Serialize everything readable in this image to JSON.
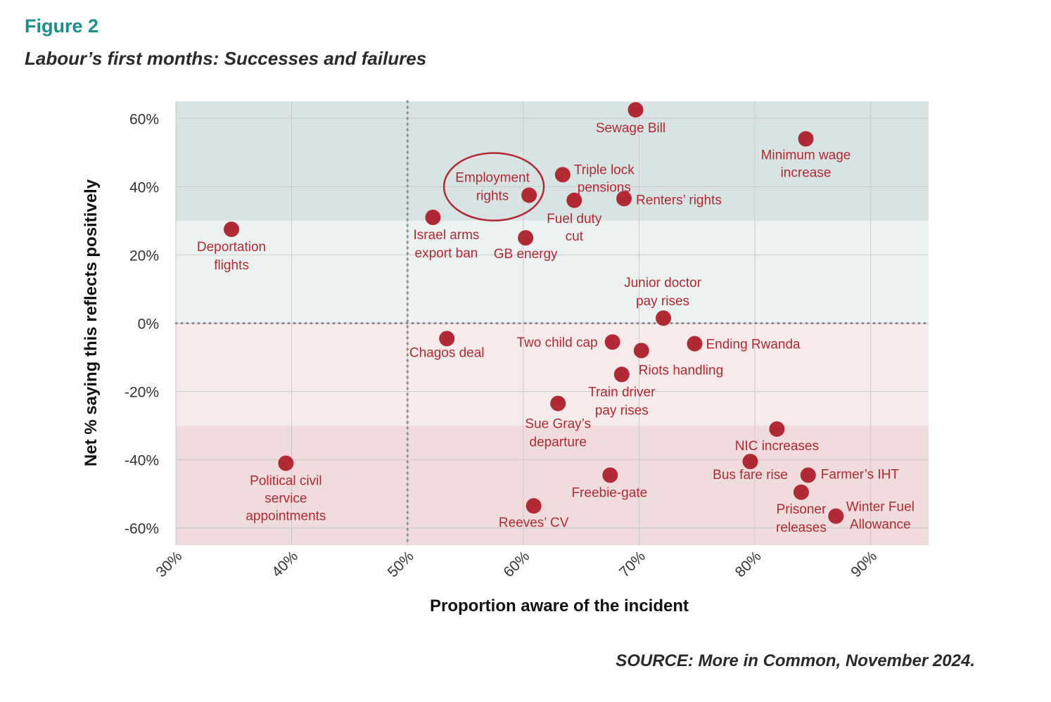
{
  "figure_label": "Figure 2",
  "subtitle": "Labour’s first months: Successes and failures",
  "source": "SOURCE: More in Common, November 2024.",
  "colors": {
    "point": "#b12a33",
    "label": "#b12a33",
    "band_top": "#d8e3e4",
    "band_upper": "#ecf2f2",
    "band_lower": "#f6eaeb",
    "band_bottom": "#f0dcdd",
    "grid": "#c9c9c9",
    "ref_line": "#8a8a8a"
  },
  "chart_data": {
    "type": "scatter",
    "xlabel": "Proportion aware of the incident",
    "ylabel": "Net % saying this reflects positively",
    "xlim": [
      30,
      95
    ],
    "ylim": [
      -65,
      65
    ],
    "x_ticks": [
      30,
      40,
      50,
      60,
      70,
      80,
      90
    ],
    "x_tick_labels": [
      "30%",
      "40%",
      "50%",
      "60%",
      "70%",
      "80%",
      "90%"
    ],
    "y_ticks": [
      60,
      40,
      20,
      0,
      -20,
      -40,
      -60
    ],
    "y_tick_labels": [
      "60%",
      "40%",
      "20%",
      "0%",
      "-20%",
      "-40%",
      "-60%"
    ],
    "grid": true,
    "reference_lines": {
      "x": 50,
      "y": 0
    },
    "bands": [
      {
        "from": 30,
        "to": 65,
        "tone": "strong-positive"
      },
      {
        "from": 0,
        "to": 30,
        "tone": "positive"
      },
      {
        "from": -30,
        "to": 0,
        "tone": "negative"
      },
      {
        "from": -65,
        "to": -30,
        "tone": "strong-negative"
      }
    ],
    "highlighted": "Employment rights",
    "points": [
      {
        "label": "Sewage Bill",
        "x": 69.7,
        "y": 62.5
      },
      {
        "label": "Minimum wage increase",
        "x": 84.4,
        "y": 54.0
      },
      {
        "label": "Triple lock pensions",
        "x": 63.4,
        "y": 43.5
      },
      {
        "label": "Employment rights",
        "x": 60.5,
        "y": 37.5
      },
      {
        "label": "Renters’ rights",
        "x": 68.7,
        "y": 36.5
      },
      {
        "label": "Fuel duty cut",
        "x": 64.4,
        "y": 36.0
      },
      {
        "label": "Israel arms export ban",
        "x": 52.2,
        "y": 31.0
      },
      {
        "label": "Deportation flights",
        "x": 34.8,
        "y": 27.5
      },
      {
        "label": "GB energy",
        "x": 60.2,
        "y": 25.0
      },
      {
        "label": "Junior doctor pay rises",
        "x": 72.1,
        "y": 1.5
      },
      {
        "label": "Chagos deal",
        "x": 53.4,
        "y": -4.5
      },
      {
        "label": "Two child cap",
        "x": 67.7,
        "y": -5.5
      },
      {
        "label": "Ending Rwanda",
        "x": 74.8,
        "y": -6.0
      },
      {
        "label": "Riots handling",
        "x": 70.2,
        "y": -8.0
      },
      {
        "label": "Train driver pay rises",
        "x": 68.5,
        "y": -15.0
      },
      {
        "label": "Sue Gray’s departure",
        "x": 63.0,
        "y": -23.5
      },
      {
        "label": "NIC increases",
        "x": 81.9,
        "y": -31.0
      },
      {
        "label": "Political civil service appointments",
        "x": 39.5,
        "y": -41.0
      },
      {
        "label": "Bus fare rise",
        "x": 79.6,
        "y": -40.5
      },
      {
        "label": "Freebie-gate",
        "x": 67.5,
        "y": -44.5
      },
      {
        "label": "Farmer’s IHT",
        "x": 84.6,
        "y": -44.5
      },
      {
        "label": "Prisoner releases",
        "x": 84.0,
        "y": -49.5
      },
      {
        "label": "Reeves’ CV",
        "x": 60.9,
        "y": -53.5
      },
      {
        "label": "Winter Fuel Allowance",
        "x": 87.0,
        "y": -56.5
      }
    ]
  }
}
